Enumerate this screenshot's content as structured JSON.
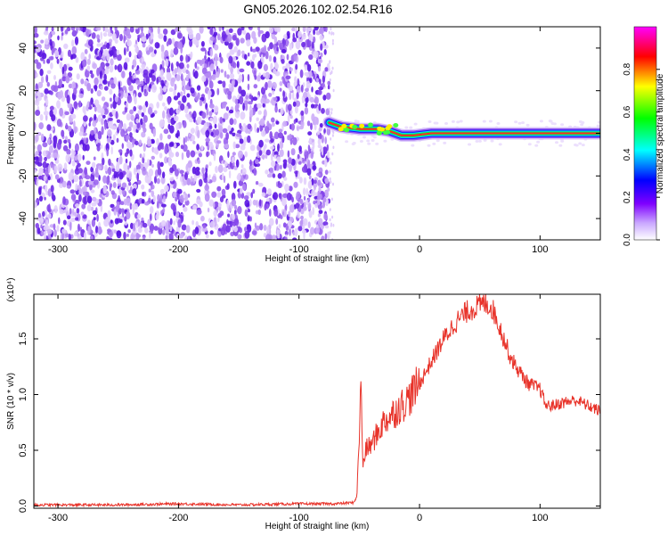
{
  "title": "GN05.2026.102.02.54.R16",
  "chart_data": [
    {
      "type": "heatmap",
      "xlabel": "Height of straight line (km)",
      "ylabel": "Frequency (Hz)",
      "xlim": [
        -320,
        150
      ],
      "ylim": [
        -50,
        50
      ],
      "xticks": [
        -300,
        -200,
        -100,
        0,
        100
      ],
      "yticks": [
        -40,
        -20,
        0,
        20,
        40
      ],
      "noise_region_x": [
        -320,
        -75
      ],
      "gap_region_x": [
        -75,
        -65
      ],
      "signal_track": [
        {
          "x": -75,
          "freq": 5
        },
        {
          "x": -65,
          "freq": 3
        },
        {
          "x": -50,
          "freq": 2
        },
        {
          "x": -35,
          "freq": 2
        },
        {
          "x": -25,
          "freq": 1
        },
        {
          "x": -15,
          "freq": -1
        },
        {
          "x": -5,
          "freq": -1
        },
        {
          "x": 10,
          "freq": 0
        },
        {
          "x": 50,
          "freq": 0
        },
        {
          "x": 100,
          "freq": 0
        },
        {
          "x": 150,
          "freq": 0
        }
      ],
      "colorbar": {
        "label": "Normalized spectral amplitude",
        "range": [
          0,
          1
        ],
        "ticks": [
          "0.0",
          "0.2",
          "0.4",
          "0.6",
          "0.8"
        ],
        "tick_values": [
          0,
          0.2,
          0.4,
          0.6,
          0.8
        ],
        "colors": [
          "#ffffff",
          "#7f00ff",
          "#0000ff",
          "#00ffff",
          "#00ff00",
          "#ffff00",
          "#ff0000",
          "#ff00ff"
        ]
      }
    },
    {
      "type": "line",
      "xlabel": "Height of straight line (km)",
      "ylabel": "SNR (10 * v/v)",
      "yscale_label": "(x10⁴)",
      "xlim": [
        -320,
        150
      ],
      "ylim": [
        -0.02,
        1.9
      ],
      "xticks": [
        -300,
        -200,
        -100,
        0,
        100
      ],
      "yticks": [
        "0.0",
        "0.5",
        "1.0",
        "1.5"
      ],
      "ytick_values": [
        0,
        0.5,
        1.0,
        1.5
      ],
      "series": [
        {
          "color": "#e8332a",
          "x": [
            -320,
            -250,
            -200,
            -150,
            -100,
            -70,
            -55,
            -52,
            -50,
            -49,
            -47,
            -45,
            -40,
            -30,
            -20,
            -10,
            0,
            10,
            20,
            30,
            40,
            50,
            55,
            60,
            65,
            70,
            75,
            80,
            90,
            100,
            105,
            110,
            120,
            130,
            140,
            150
          ],
          "y": [
            0.01,
            0.01,
            0.02,
            0.01,
            0.02,
            0.02,
            0.03,
            0.08,
            0.6,
            1.22,
            0.35,
            0.5,
            0.55,
            0.75,
            0.85,
            0.95,
            1.1,
            1.3,
            1.5,
            1.65,
            1.75,
            1.8,
            1.82,
            1.78,
            1.65,
            1.5,
            1.35,
            1.25,
            1.1,
            1.05,
            0.9,
            0.9,
            0.93,
            0.95,
            0.9,
            0.85
          ]
        }
      ]
    }
  ]
}
